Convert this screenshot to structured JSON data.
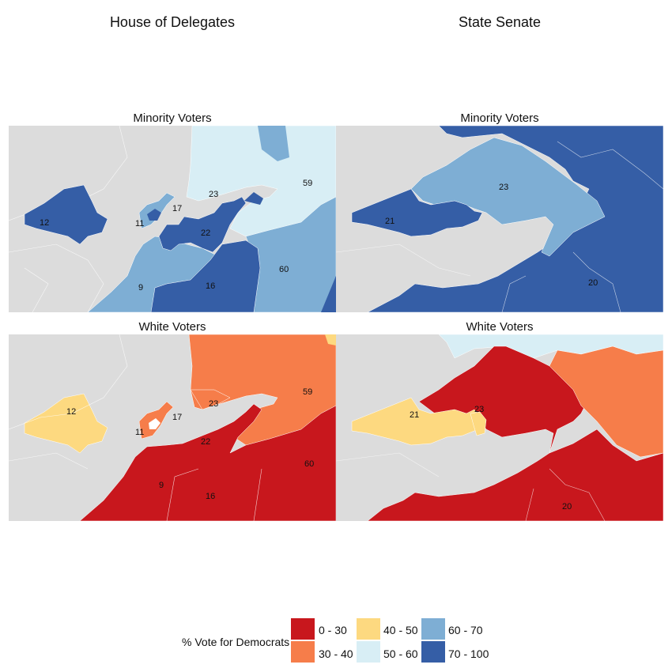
{
  "columns": {
    "left": "House of Delegates",
    "right": "State Senate"
  },
  "panels": {
    "minority": "Minority Voters",
    "white": "White Voters"
  },
  "palette": {
    "c0_30": "#c8171d",
    "c30_40": "#f67d4a",
    "c40_50": "#fdd980",
    "c50_60": "#d8eef5",
    "c60_70": "#7eaed4",
    "c70_100": "#355ea6",
    "nodata": "#dcdcdc"
  },
  "house_minority": {
    "d12": "12",
    "d11": "11",
    "d17": "17",
    "d23": "23",
    "d22": "22",
    "d59": "59",
    "d60": "60",
    "d9": "9",
    "d16": "16"
  },
  "house_white": {
    "d12": "12",
    "d11": "11",
    "d17": "17",
    "d23": "23",
    "d22": "22",
    "d59": "59",
    "d60": "60",
    "d9": "9",
    "d16": "16"
  },
  "senate_minority": {
    "d23": "23",
    "d21": "21",
    "d20": "20"
  },
  "senate_white": {
    "d21": "21",
    "d23": "23",
    "d20": "20"
  },
  "legend": {
    "title": "% Vote for Democrats",
    "items": [
      {
        "label": "0 - 30",
        "color": "#c8171d"
      },
      {
        "label": "30 - 40",
        "color": "#f67d4a"
      },
      {
        "label": "40 - 50",
        "color": "#fdd980"
      },
      {
        "label": "50 - 60",
        "color": "#d8eef5"
      },
      {
        "label": "60 - 70",
        "color": "#7eaed4"
      },
      {
        "label": "70 - 100",
        "color": "#355ea6"
      }
    ]
  }
}
